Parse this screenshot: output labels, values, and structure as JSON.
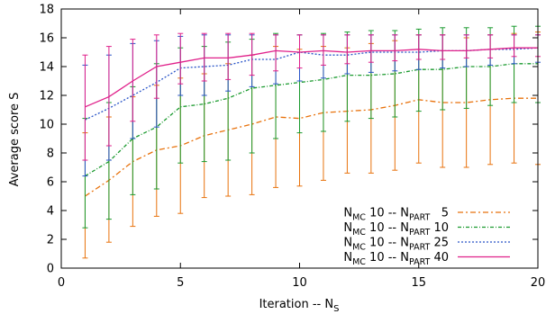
{
  "chart_data": {
    "type": "line",
    "xlabel": "Iteration -- N",
    "xlabel_sub": "S",
    "ylabel": "Average score S",
    "xlim": [
      0,
      20
    ],
    "ylim": [
      0,
      18
    ],
    "x_ticks": [
      0,
      5,
      10,
      15,
      20
    ],
    "y_ticks": [
      0,
      2,
      4,
      6,
      8,
      10,
      12,
      14,
      16,
      18
    ],
    "grid": false,
    "legend_position": "bottom-right",
    "x": [
      1,
      2,
      3,
      4,
      5,
      6,
      7,
      8,
      9,
      10,
      11,
      12,
      13,
      14,
      15,
      16,
      17,
      18,
      19,
      20
    ],
    "series": [
      {
        "name": "N_MC 10 -- N_PART 5",
        "label_main": "N",
        "label_sub1": "MC",
        "label_mid": " 10 -- N",
        "label_sub2": "PART",
        "label_tail": "   5",
        "color": "#e8720c",
        "dash": "6,3,2,3",
        "values": [
          5.0,
          6.1,
          7.4,
          8.2,
          8.5,
          9.2,
          9.6,
          10.0,
          10.5,
          10.4,
          10.8,
          10.9,
          11.0,
          11.3,
          11.7,
          11.5,
          11.5,
          11.7,
          11.8,
          11.8
        ],
        "err_low": [
          0.7,
          1.8,
          2.9,
          3.6,
          3.8,
          4.9,
          5.0,
          5.1,
          5.6,
          5.7,
          6.1,
          6.6,
          6.6,
          6.8,
          7.3,
          7.0,
          7.0,
          7.2,
          7.3,
          7.2
        ],
        "err_high": [
          9.4,
          10.5,
          11.9,
          12.7,
          13.2,
          13.5,
          14.2,
          14.8,
          15.4,
          15.2,
          15.4,
          15.3,
          15.6,
          15.8,
          16.2,
          16.2,
          16.0,
          16.2,
          16.3,
          16.4
        ]
      },
      {
        "name": "N_MC 10 -- N_PART 10",
        "label_main": "N",
        "label_sub1": "MC",
        "label_mid": " 10 -- N",
        "label_sub2": "PART",
        "label_tail": " 10",
        "color": "#1a9a2e",
        "dash": "4,2,1,2",
        "values": [
          6.4,
          7.4,
          9.0,
          9.8,
          11.2,
          11.4,
          11.8,
          12.5,
          12.7,
          12.9,
          13.1,
          13.4,
          13.4,
          13.5,
          13.8,
          13.8,
          14.0,
          14.0,
          14.2,
          14.2
        ],
        "err_low": [
          2.8,
          3.4,
          5.1,
          5.5,
          7.3,
          7.4,
          7.5,
          8.0,
          9.0,
          9.4,
          9.5,
          10.2,
          10.4,
          10.5,
          10.9,
          11.0,
          11.1,
          11.3,
          11.5,
          11.5
        ],
        "err_high": [
          10.4,
          11.5,
          12.6,
          14.2,
          15.3,
          15.4,
          15.7,
          15.9,
          16.3,
          16.2,
          16.3,
          16.4,
          16.5,
          16.5,
          16.6,
          16.7,
          16.7,
          16.7,
          16.8,
          16.8
        ]
      },
      {
        "name": "N_MC 10 -- N_PART 25",
        "label_main": "N",
        "label_sub1": "MC",
        "label_mid": " 10 -- N",
        "label_sub2": "PART",
        "label_tail": " 25",
        "color": "#2a55c8",
        "dash": "2,2",
        "values": [
          10.3,
          11.1,
          12.0,
          12.9,
          13.9,
          14.0,
          14.1,
          14.5,
          14.5,
          15.0,
          14.8,
          14.8,
          15.0,
          15.0,
          15.0,
          15.1,
          15.1,
          15.2,
          15.2,
          15.3
        ],
        "err_low": [
          6.4,
          7.5,
          9.0,
          9.8,
          12.0,
          12.0,
          12.3,
          12.6,
          12.8,
          13.0,
          13.2,
          13.5,
          13.6,
          13.7,
          13.8,
          13.9,
          14.0,
          14.1,
          14.2,
          14.3
        ],
        "err_high": [
          14.1,
          14.8,
          15.6,
          15.8,
          16.1,
          16.2,
          16.2,
          16.2,
          16.2,
          16.2,
          16.2,
          16.2,
          16.2,
          16.2,
          16.2,
          16.2,
          16.2,
          16.2,
          16.2,
          16.2
        ]
      },
      {
        "name": "N_MC 10 -- N_PART 40",
        "label_main": "N",
        "label_sub1": "MC",
        "label_mid": " 10 -- N",
        "label_sub2": "PART",
        "label_tail": " 40",
        "color": "#e0208a",
        "dash": "",
        "values": [
          11.2,
          11.9,
          13.0,
          14.0,
          14.3,
          14.6,
          14.6,
          14.8,
          15.1,
          15.0,
          15.1,
          15.0,
          15.1,
          15.1,
          15.2,
          15.1,
          15.1,
          15.2,
          15.3,
          15.3
        ],
        "err_low": [
          7.5,
          8.5,
          10.2,
          11.8,
          12.8,
          13.0,
          13.1,
          13.4,
          13.7,
          13.9,
          14.1,
          14.2,
          14.3,
          14.4,
          14.5,
          14.5,
          14.6,
          14.6,
          14.7,
          14.7
        ],
        "err_high": [
          14.8,
          15.4,
          15.9,
          16.2,
          16.3,
          16.3,
          16.3,
          16.3,
          16.2,
          16.2,
          16.2,
          16.2,
          16.2,
          16.2,
          16.2,
          16.2,
          16.2,
          16.2,
          16.2,
          16.2
        ]
      }
    ]
  }
}
